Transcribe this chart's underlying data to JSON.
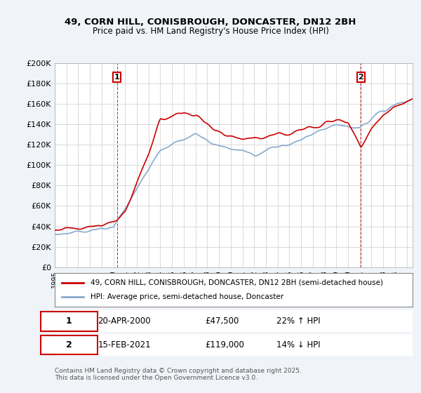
{
  "title_line1": "49, CORN HILL, CONISBROUGH, DONCASTER, DN12 2BH",
  "title_line2": "Price paid vs. HM Land Registry's House Price Index (HPI)",
  "ylabel_ticks": [
    "£0",
    "£20K",
    "£40K",
    "£60K",
    "£80K",
    "£100K",
    "£120K",
    "£140K",
    "£160K",
    "£180K",
    "£200K"
  ],
  "ytick_values": [
    0,
    20000,
    40000,
    60000,
    80000,
    100000,
    120000,
    140000,
    160000,
    180000,
    200000
  ],
  "x_start_year": 1995,
  "x_end_year": 2025,
  "legend_line1": "49, CORN HILL, CONISBROUGH, DONCASTER, DN12 2BH (semi-detached house)",
  "legend_line2": "HPI: Average price, semi-detached house, Doncaster",
  "legend_color1": "#cc0000",
  "legend_color2": "#6699cc",
  "annotation1_label": "1",
  "annotation1_text": "20-APR-2000    £47,500    22% ↑ HPI",
  "annotation2_label": "2",
  "annotation2_text": "15-FEB-2021    £119,000    14% ↓ HPI",
  "annotation1_year": 2000.3,
  "annotation1_value": 47500,
  "annotation2_year": 2021.1,
  "annotation2_value": 119000,
  "vline1_year": 2000.3,
  "vline2_year": 2021.1,
  "footer": "Contains HM Land Registry data © Crown copyright and database right 2025.\nThis data is licensed under the Open Government Licence v3.0.",
  "bg_color": "#f0f4f8",
  "plot_bg_color": "#ffffff",
  "grid_color": "#cccccc",
  "red_line_color": "#cc0000",
  "blue_line_color": "#88aacc"
}
